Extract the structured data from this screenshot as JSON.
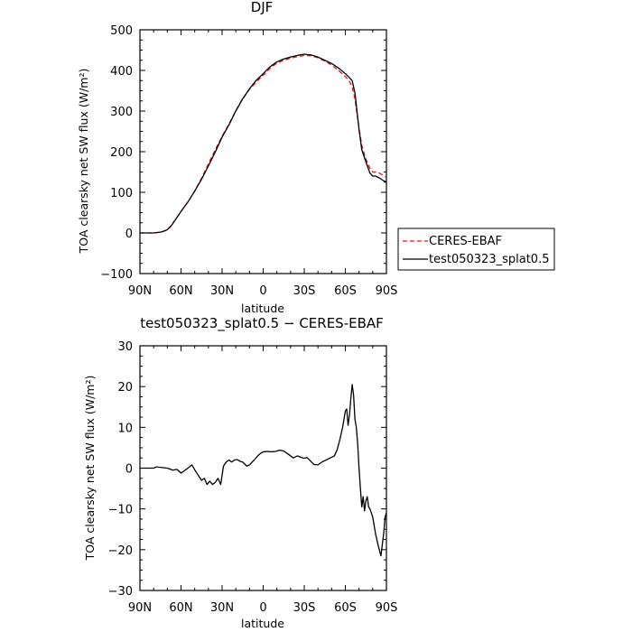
{
  "chart_data": [
    {
      "type": "line",
      "title": "DJF",
      "xlabel": "latitude",
      "ylabel": "TOA clearsky net SW flux (W/m²)",
      "xlim": [
        90,
        -90
      ],
      "ylim": [
        -100,
        500
      ],
      "x_ticks": [
        90,
        60,
        30,
        0,
        -30,
        -60,
        -90
      ],
      "x_tick_labels": [
        "90N",
        "60N",
        "30N",
        "0",
        "30S",
        "60S",
        "90S"
      ],
      "y_ticks": [
        -100,
        0,
        100,
        200,
        300,
        400,
        500
      ],
      "y_tick_labels": [
        "−100",
        "0",
        "100",
        "200",
        "300",
        "400",
        "500"
      ],
      "legend_position": "right",
      "series": [
        {
          "name": "CERES-EBAF",
          "color": "#e0141e",
          "dash": "dashed",
          "x": [
            90,
            85,
            80,
            75,
            72,
            70,
            68,
            66,
            64,
            62,
            60,
            55,
            50,
            45,
            40,
            35,
            30,
            25,
            20,
            15,
            10,
            5,
            0,
            -5,
            -10,
            -15,
            -20,
            -25,
            -30,
            -35,
            -40,
            -45,
            -50,
            -55,
            -60,
            -63,
            -65,
            -67,
            -68,
            -70,
            -72,
            -75,
            -78,
            -80,
            -82,
            -85,
            -88,
            -90
          ],
          "y": [
            0,
            0,
            0,
            2,
            5,
            9,
            15,
            24,
            33,
            43,
            53,
            76,
            103,
            135,
            170,
            205,
            238,
            268,
            301,
            330,
            353,
            372,
            388,
            405,
            418,
            425,
            430,
            434,
            437,
            436,
            431,
            423,
            413,
            400,
            385,
            373,
            360,
            330,
            305,
            258,
            215,
            182,
            158,
            150,
            150,
            147,
            141,
            137
          ]
        },
        {
          "name": "test050323_splat0.5",
          "color": "#000000",
          "dash": "solid",
          "x": [
            90,
            85,
            80,
            75,
            72,
            70,
            68,
            66,
            64,
            62,
            60,
            55,
            50,
            45,
            40,
            35,
            30,
            25,
            20,
            15,
            10,
            5,
            0,
            -5,
            -10,
            -15,
            -20,
            -25,
            -30,
            -35,
            -40,
            -45,
            -50,
            -55,
            -60,
            -63,
            -65,
            -67,
            -68,
            -70,
            -72,
            -75,
            -78,
            -80,
            -82,
            -85,
            -88,
            -90
          ],
          "y": [
            0,
            0,
            0,
            2,
            5,
            8,
            14,
            23,
            33,
            43,
            53,
            76,
            103,
            132,
            165,
            199,
            236,
            266,
            300,
            330,
            355,
            376,
            392,
            409,
            421,
            428,
            433,
            437,
            440,
            438,
            433,
            425,
            417,
            406,
            392,
            382,
            375,
            345,
            315,
            255,
            205,
            175,
            147,
            140,
            140,
            135,
            128,
            126
          ]
        }
      ]
    },
    {
      "type": "line",
      "title": "test050323_splat0.5 − CERES-EBAF",
      "xlabel": "latitude",
      "ylabel": "TOA clearsky net SW flux (W/m²)",
      "xlim": [
        90,
        -90
      ],
      "ylim": [
        -30,
        30
      ],
      "x_ticks": [
        90,
        60,
        30,
        0,
        -30,
        -60,
        -90
      ],
      "x_tick_labels": [
        "90N",
        "60N",
        "30N",
        "0",
        "30S",
        "60S",
        "90S"
      ],
      "y_ticks": [
        -30,
        -20,
        -10,
        0,
        10,
        20,
        30
      ],
      "y_tick_labels": [
        "−30",
        "−20",
        "−10",
        "0",
        "10",
        "20",
        "30"
      ],
      "series": [
        {
          "color": "#000000",
          "dash": "solid",
          "x": [
            90,
            85,
            80,
            78,
            75,
            70,
            66,
            63,
            60,
            57,
            55,
            52,
            50,
            47,
            45,
            43,
            41,
            39,
            37,
            35,
            33,
            31,
            29,
            27,
            25,
            23,
            21,
            19,
            17,
            15,
            12,
            10,
            8,
            6,
            4,
            2,
            0,
            -3,
            -6,
            -9,
            -12,
            -15,
            -18,
            -20,
            -22,
            -25,
            -28,
            -30,
            -32,
            -35,
            -37,
            -40,
            -43,
            -46,
            -49,
            -52,
            -54,
            -56,
            -58,
            -60,
            -61,
            -62,
            -63,
            -64,
            -65,
            -66,
            -67,
            -68,
            -69,
            -70,
            -71,
            -72,
            -73,
            -74,
            -75,
            -76,
            -77,
            -78,
            -80,
            -82,
            -84,
            -86,
            -88,
            -89,
            -90
          ],
          "y": [
            0,
            0,
            0,
            0.3,
            0.2,
            0,
            -0.5,
            -0.3,
            -1.2,
            -0.5,
            0,
            0.8,
            -0.4,
            -2,
            -3,
            -2.5,
            -4,
            -3.2,
            -4,
            -3.5,
            -2.5,
            -4,
            0.5,
            1.5,
            2.0,
            1.5,
            2.0,
            2.1,
            1.7,
            1.5,
            0.5,
            0.8,
            1.5,
            2.2,
            3.0,
            3.6,
            4.0,
            4.1,
            4.0,
            4.1,
            4.4,
            4.2,
            3.5,
            3.0,
            2.5,
            3.0,
            2.6,
            2.4,
            2.6,
            1.6,
            0.9,
            0.8,
            1.5,
            2.0,
            2.5,
            3.0,
            4.5,
            7.0,
            10.0,
            14.0,
            14.5,
            10.5,
            13.0,
            17.0,
            20.5,
            18.0,
            12.0,
            10.0,
            6.0,
            0.0,
            -5.0,
            -9.5,
            -7.0,
            -10.5,
            -8.0,
            -7.0,
            -9.5,
            -10.0,
            -12.0,
            -16.0,
            -19.0,
            -21.5,
            -16.0,
            -12.0,
            -11.0
          ]
        }
      ]
    }
  ]
}
